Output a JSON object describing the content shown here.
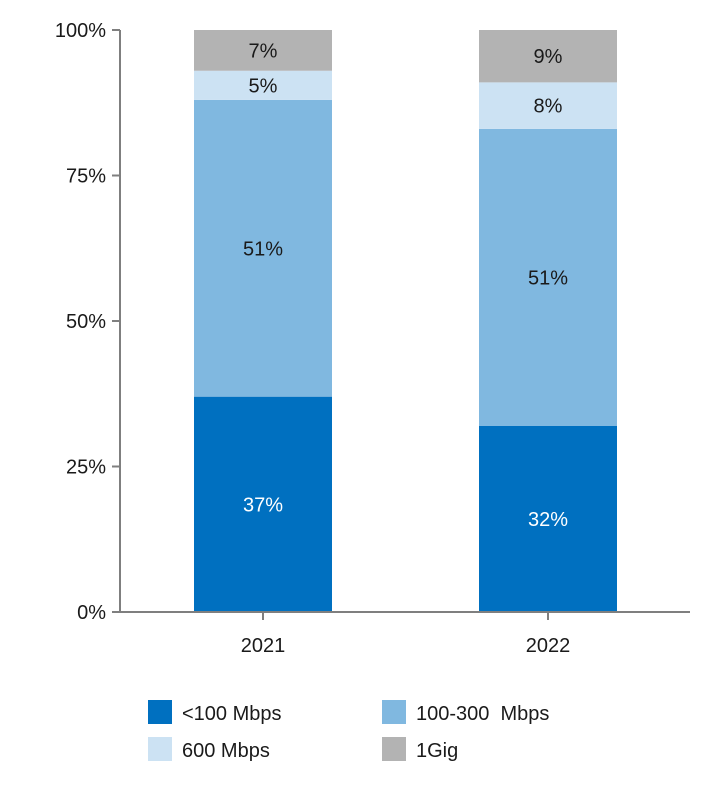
{
  "chart_data": {
    "type": "bar",
    "stacked": true,
    "categories": [
      "2021",
      "2022"
    ],
    "series": [
      {
        "name": "<100 Mbps",
        "values": [
          37,
          32
        ],
        "labels": [
          "37%",
          "32%"
        ],
        "color": "#0070c0",
        "label_color": "#ffffff"
      },
      {
        "name": "100-300  Mbps",
        "values": [
          51,
          51
        ],
        "labels": [
          "51%",
          "51%"
        ],
        "color": "#80b8e0",
        "label_color": "#1a1a1a"
      },
      {
        "name": "600 Mbps",
        "values": [
          5,
          8
        ],
        "labels": [
          "5%",
          "8%"
        ],
        "color": "#cce2f3",
        "label_color": "#1a1a1a"
      },
      {
        "name": "1Gig",
        "values": [
          7,
          9
        ],
        "labels": [
          "7%",
          "9%"
        ],
        "color": "#b3b3b3",
        "label_color": "#1a1a1a"
      }
    ],
    "yticks": [
      {
        "value": 0,
        "label": "0%"
      },
      {
        "value": 25,
        "label": "25%"
      },
      {
        "value": 50,
        "label": "50%"
      },
      {
        "value": 75,
        "label": "75%"
      },
      {
        "value": 100,
        "label": "100%"
      }
    ],
    "ylim": [
      0,
      100
    ],
    "grid": false,
    "legend_position": "bottom"
  }
}
